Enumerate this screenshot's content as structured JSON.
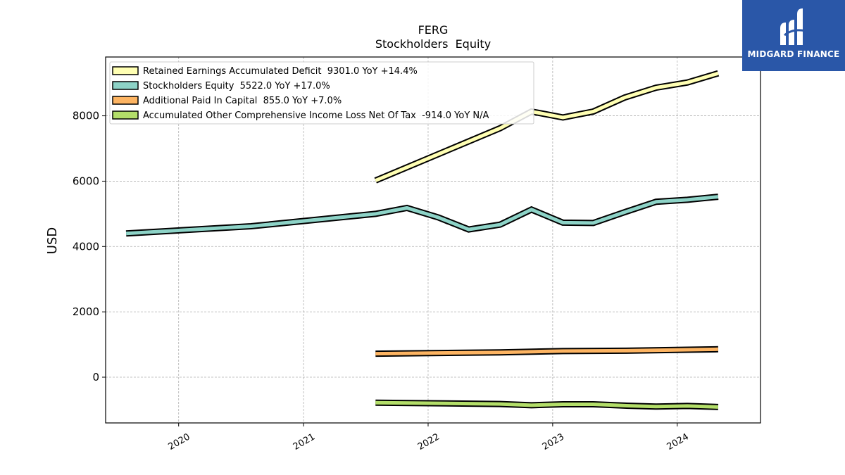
{
  "chart_data": {
    "type": "line",
    "title": "FERG",
    "subtitle": "Stockholders  Equity",
    "xlabel": "",
    "ylabel": "USD",
    "xlim": [
      "2019-06-01",
      "2024-09-01"
    ],
    "ylim": [
      -1400,
      9800
    ],
    "xticks": [
      "2020",
      "2021",
      "2022",
      "2023",
      "2024"
    ],
    "yticks": [
      0,
      2000,
      4000,
      6000,
      8000
    ],
    "grid": true,
    "legend_position": "top-left",
    "series": [
      {
        "name": "Retained Earnings Accumulated Deficit  9301.0 YoY +14.4%",
        "color": "#ffffb3",
        "x": [
          "2021-07-31",
          "2022-07-31",
          "2022-10-31",
          "2023-01-31",
          "2023-04-30",
          "2023-07-31",
          "2023-10-31",
          "2024-01-31",
          "2024-04-30"
        ],
        "values": [
          6020,
          7620,
          8130,
          7950,
          8130,
          8560,
          8860,
          9020,
          9301
        ]
      },
      {
        "name": "Stockholders Equity  5522.0 YoY +17.0%",
        "color": "#8dd3c7",
        "x": [
          "2019-07-31",
          "2020-07-31",
          "2021-07-31",
          "2021-10-31",
          "2022-01-31",
          "2022-04-30",
          "2022-07-31",
          "2022-10-31",
          "2023-01-31",
          "2023-04-30",
          "2023-07-31",
          "2023-10-31",
          "2024-01-31",
          "2024-04-30"
        ],
        "values": [
          4400,
          4620,
          5000,
          5180,
          4890,
          4520,
          4670,
          5130,
          4730,
          4720,
          5050,
          5370,
          5430,
          5522
        ]
      },
      {
        "name": "Additional Paid In Capital  855.0 YoY +7.0%",
        "color": "#fdb462",
        "x": [
          "2021-07-31",
          "2022-07-31",
          "2023-01-31",
          "2023-07-31",
          "2024-01-31",
          "2024-04-30"
        ],
        "values": [
          720,
          760,
          800,
          810,
          840,
          855
        ]
      },
      {
        "name": "Accumulated Other Comprehensive Income Loss Net Of Tax  -914.0 YoY N/A",
        "color": "#b3de69",
        "x": [
          "2021-07-31",
          "2022-07-31",
          "2022-10-31",
          "2023-01-31",
          "2023-04-30",
          "2023-07-31",
          "2023-10-31",
          "2024-01-31",
          "2024-04-30"
        ],
        "values": [
          -780,
          -820,
          -860,
          -830,
          -830,
          -870,
          -900,
          -880,
          -914
        ]
      }
    ]
  },
  "watermark": {
    "text": "MIDGARD FINANCE",
    "background": "#2a57a8"
  }
}
